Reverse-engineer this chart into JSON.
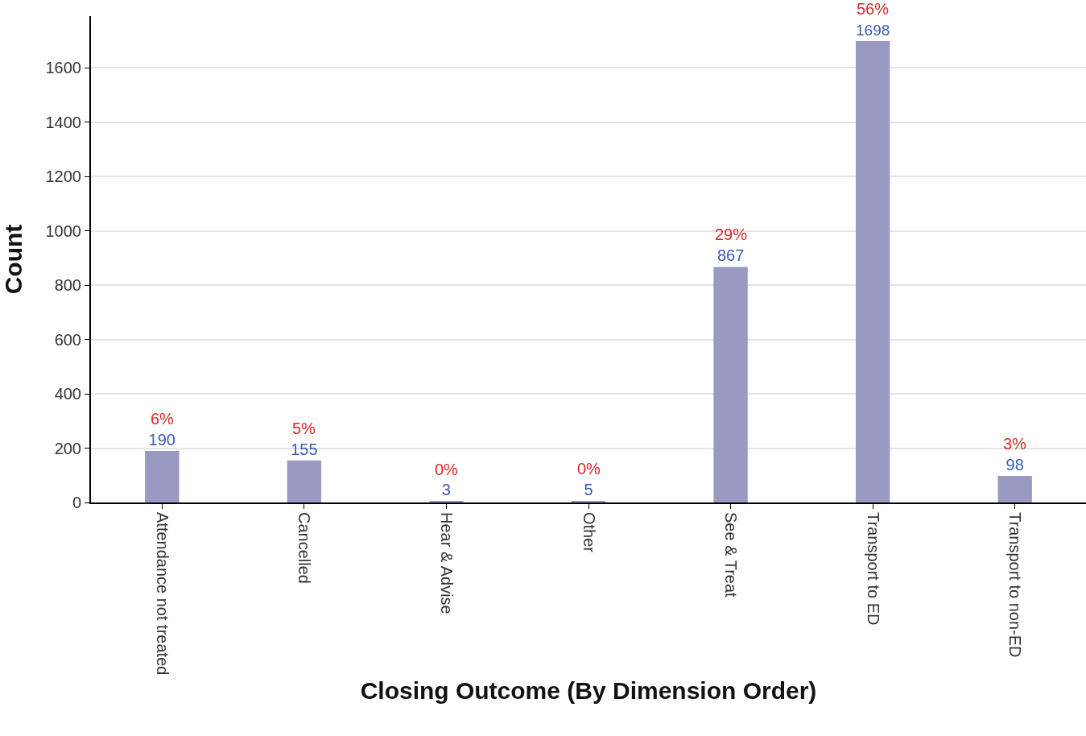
{
  "chart_data": {
    "type": "bar",
    "xlabel": "Closing Outcome (By Dimension Order)",
    "ylabel": "Count",
    "categories": [
      "Attendance not treated",
      "Cancelled",
      "Hear & Advise",
      "Other",
      "See & Treat",
      "Transport to ED",
      "Transport to non-ED"
    ],
    "values": [
      190,
      155,
      3,
      5,
      867,
      1698,
      98
    ],
    "color": "#9999c2",
    "data_labels": true,
    "annotations": [
      {
        "text": "6%",
        "x": "Attendance not treated",
        "y": 190
      },
      {
        "text": "5%",
        "x": "Cancelled",
        "y": 155
      },
      {
        "text": "0%",
        "x": "Hear & Advise",
        "y": 3
      },
      {
        "text": "0%",
        "x": "Other",
        "y": 5
      },
      {
        "text": "29%",
        "x": "See & Treat",
        "y": 867
      },
      {
        "text": "56%",
        "x": "Transport to ED",
        "y": 1698
      },
      {
        "text": "3%",
        "x": "Transport to non-ED",
        "y": 98
      }
    ],
    "ylim": [
      0,
      1790
    ],
    "yticks": [
      0,
      200,
      400,
      600,
      800,
      1000,
      1200,
      1400,
      1600
    ],
    "grid": "y"
  }
}
